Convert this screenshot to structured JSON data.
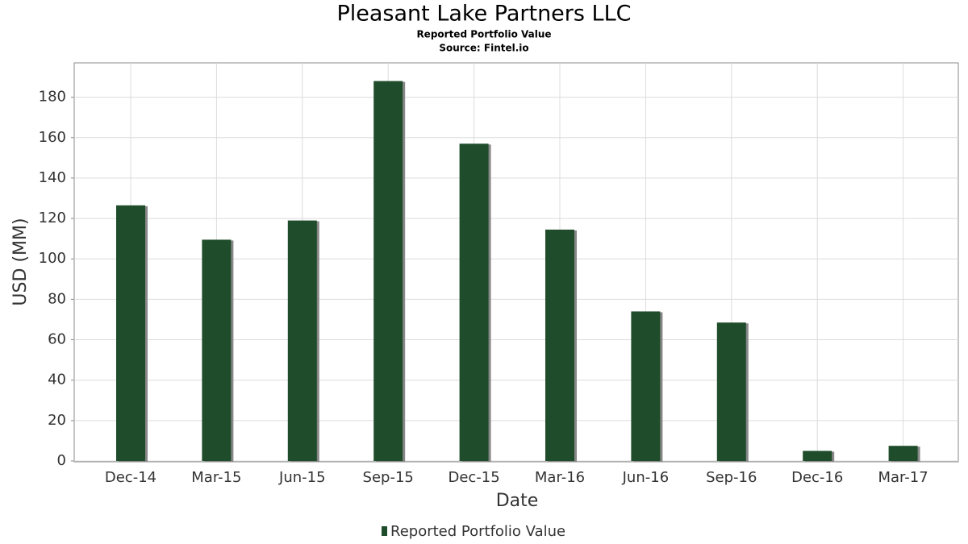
{
  "chart_data": {
    "type": "bar",
    "title": "Pleasant Lake Partners LLC",
    "subtitle": "Reported Portfolio Value",
    "source": "Source: Fintel.io",
    "x_label": "Date",
    "y_label": "USD (MM)",
    "categories": [
      "Dec-14",
      "Mar-15",
      "Jun-15",
      "Sep-15",
      "Dec-15",
      "Mar-16",
      "Jun-16",
      "Sep-16",
      "Dec-16",
      "Mar-17"
    ],
    "series": [
      {
        "name": "Reported Portfolio Value",
        "color": "#1f4d2b",
        "values": [
          126.5,
          109.5,
          119,
          188,
          157,
          114.5,
          74,
          68.5,
          5,
          7.5
        ]
      }
    ],
    "ylim": [
      0,
      197
    ],
    "yticks": [
      0,
      20,
      40,
      60,
      80,
      100,
      120,
      140,
      160,
      180
    ],
    "grid": true
  }
}
